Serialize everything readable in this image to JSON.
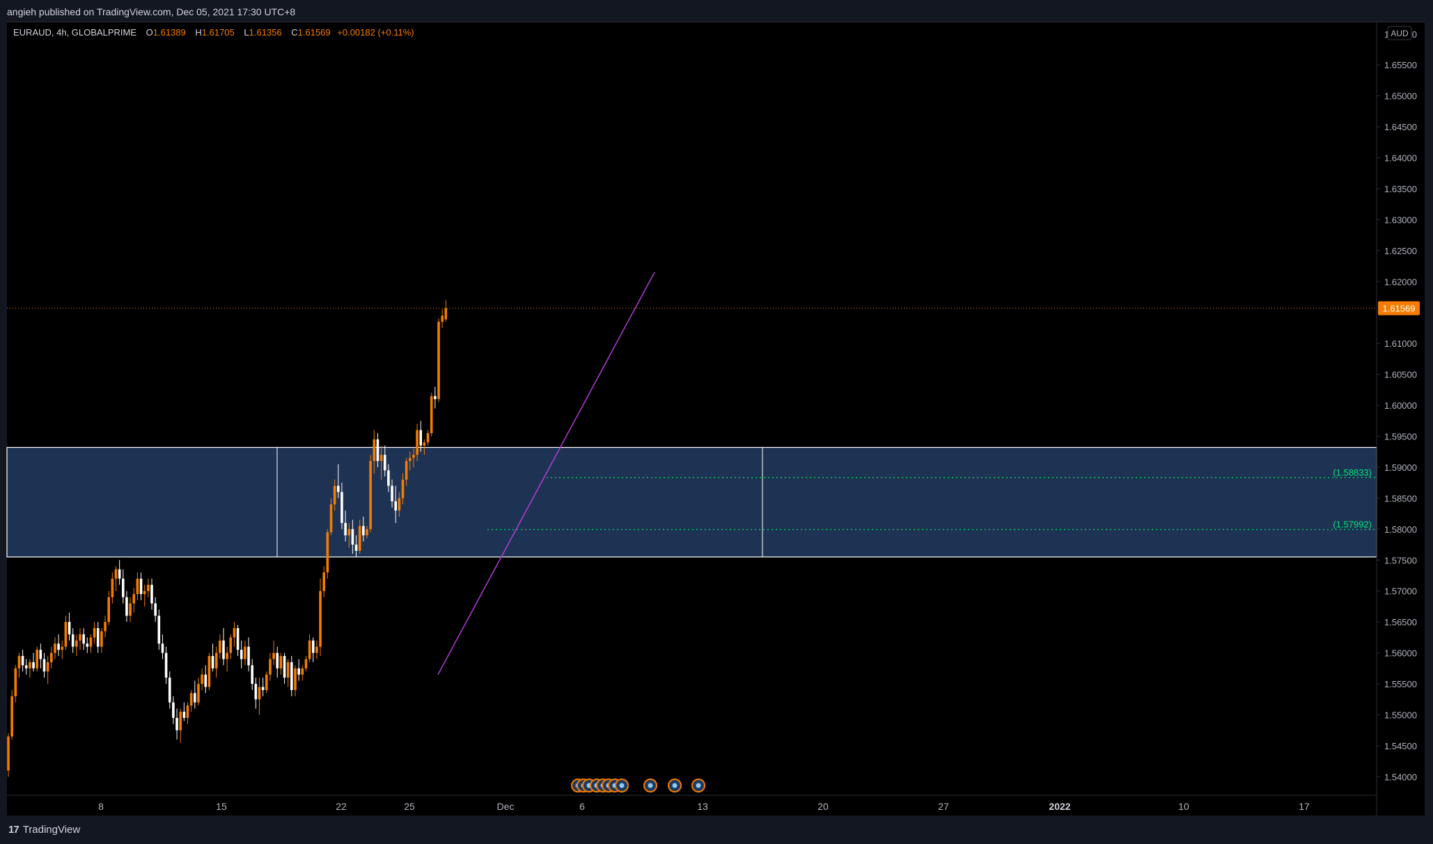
{
  "header": {
    "published_text": "angieh published on TradingView.com, Dec 05, 2021 17:30 UTC+8"
  },
  "legend": {
    "symbol": "EURAUD, 4h, GLOBALPRIME",
    "open_label": "O",
    "open_value": "1.61389",
    "high_label": "H",
    "high_value": "1.61705",
    "low_label": "L",
    "low_value": "1.61356",
    "close_label": "C",
    "close_value": "1.61569",
    "change": "+0.00182 (+0.11%)"
  },
  "price_axis": {
    "currency": "AUD",
    "top_tick": "1.66000",
    "ticks": [
      "1.65500",
      "1.65000",
      "1.64500",
      "1.64000",
      "1.63500",
      "1.63000",
      "1.62500",
      "1.62000",
      "1.61000",
      "1.60500",
      "1.60000",
      "1.59500",
      "1.59000",
      "1.58500",
      "1.58000",
      "1.57500",
      "1.57000",
      "1.56500",
      "1.56000",
      "1.55500",
      "1.55000",
      "1.54500",
      "1.54000"
    ],
    "current_price_label": "1.61569"
  },
  "time_axis": {
    "ticks": [
      "8",
      "15",
      "22",
      "25",
      "Dec",
      "6",
      "13",
      "20",
      "27",
      "2022",
      "10",
      "17"
    ]
  },
  "annotations": {
    "level_upper": "(1.58833)",
    "level_lower": "(1.57992)"
  },
  "footer": {
    "brand": "TradingView",
    "brand_mark": "17"
  },
  "colors": {
    "background": "#000000",
    "up_candle": "#f57c00",
    "down_candle": "#ffffff",
    "zone_fill": "#1e3354",
    "zone_border": "#ffffff",
    "trendline": "#b33bd6",
    "level_line": "#00c853",
    "price_line": "#f57c00",
    "text": "#b2b5be"
  },
  "chart_data": {
    "type": "candlestick",
    "symbol": "EURAUD",
    "timeframe": "4h",
    "ylim": [
      1.537,
      1.662
    ],
    "x_tick_labels": [
      "8",
      "15",
      "22",
      "25",
      "Dec",
      "6",
      "13",
      "20",
      "27",
      "2022",
      "10",
      "17"
    ],
    "last_price": 1.61569,
    "ohlc": {
      "open": 1.61389,
      "high": 1.61705,
      "low": 1.61356,
      "close": 1.61569,
      "change": 0.00182,
      "change_pct": 0.11
    },
    "horizontal_levels": [
      1.58833,
      1.57992
    ],
    "zone": {
      "top": 1.5932,
      "bottom": 1.5755
    },
    "trendline": {
      "from_price": 1.5565,
      "to_price": 1.6215
    },
    "candles": [
      [
        1.541,
        1.547,
        1.54,
        1.5465
      ],
      [
        1.5465,
        1.554,
        1.546,
        1.553
      ],
      [
        1.553,
        1.558,
        1.552,
        1.5575
      ],
      [
        1.5575,
        1.56,
        1.556,
        1.5595
      ],
      [
        1.5595,
        1.5605,
        1.557,
        1.558
      ],
      [
        1.558,
        1.559,
        1.5565,
        1.5575
      ],
      [
        1.5575,
        1.559,
        1.556,
        1.5585
      ],
      [
        1.5585,
        1.56,
        1.557,
        1.5575
      ],
      [
        1.5575,
        1.561,
        1.557,
        1.5605
      ],
      [
        1.5605,
        1.5615,
        1.5575,
        1.559
      ],
      [
        1.559,
        1.56,
        1.556,
        1.557
      ],
      [
        1.557,
        1.5595,
        1.555,
        1.5585
      ],
      [
        1.5585,
        1.561,
        1.5575,
        1.56
      ],
      [
        1.56,
        1.5625,
        1.559,
        1.5615
      ],
      [
        1.5615,
        1.563,
        1.5595,
        1.5605
      ],
      [
        1.5605,
        1.562,
        1.559,
        1.561
      ],
      [
        1.561,
        1.566,
        1.5605,
        1.565
      ],
      [
        1.565,
        1.5665,
        1.562,
        1.563
      ],
      [
        1.563,
        1.564,
        1.56,
        1.561
      ],
      [
        1.561,
        1.563,
        1.5595,
        1.562
      ],
      [
        1.562,
        1.564,
        1.5605,
        1.563
      ],
      [
        1.563,
        1.564,
        1.5605,
        1.5615
      ],
      [
        1.5615,
        1.5625,
        1.56,
        1.561
      ],
      [
        1.561,
        1.563,
        1.56,
        1.5625
      ],
      [
        1.5625,
        1.565,
        1.5615,
        1.564
      ],
      [
        1.564,
        1.565,
        1.56,
        1.561
      ],
      [
        1.561,
        1.564,
        1.56,
        1.5635
      ],
      [
        1.5635,
        1.566,
        1.5625,
        1.565
      ],
      [
        1.565,
        1.57,
        1.5645,
        1.569
      ],
      [
        1.569,
        1.573,
        1.568,
        1.572
      ],
      [
        1.572,
        1.574,
        1.57,
        1.5735
      ],
      [
        1.5735,
        1.575,
        1.571,
        1.572
      ],
      [
        1.572,
        1.5735,
        1.568,
        1.569
      ],
      [
        1.569,
        1.57,
        1.565,
        1.566
      ],
      [
        1.566,
        1.569,
        1.565,
        1.568
      ],
      [
        1.568,
        1.5705,
        1.5665,
        1.5695
      ],
      [
        1.5695,
        1.573,
        1.5685,
        1.572
      ],
      [
        1.572,
        1.573,
        1.5685,
        1.5695
      ],
      [
        1.5695,
        1.571,
        1.5675,
        1.57
      ],
      [
        1.57,
        1.572,
        1.569,
        1.571
      ],
      [
        1.571,
        1.572,
        1.567,
        1.568
      ],
      [
        1.568,
        1.569,
        1.565,
        1.566
      ],
      [
        1.566,
        1.567,
        1.5605,
        1.5615
      ],
      [
        1.5615,
        1.563,
        1.559,
        1.56
      ],
      [
        1.56,
        1.561,
        1.555,
        1.556
      ],
      [
        1.556,
        1.557,
        1.551,
        1.552
      ],
      [
        1.552,
        1.553,
        1.5485,
        1.5495
      ],
      [
        1.5495,
        1.551,
        1.546,
        1.5475
      ],
      [
        1.5475,
        1.551,
        1.5455,
        1.5505
      ],
      [
        1.5505,
        1.552,
        1.549,
        1.5495
      ],
      [
        1.5495,
        1.552,
        1.5485,
        1.5515
      ],
      [
        1.5515,
        1.554,
        1.5505,
        1.5535
      ],
      [
        1.5535,
        1.5555,
        1.551,
        1.552
      ],
      [
        1.552,
        1.556,
        1.5515,
        1.555
      ],
      [
        1.555,
        1.5575,
        1.554,
        1.5565
      ],
      [
        1.5565,
        1.558,
        1.5535,
        1.5545
      ],
      [
        1.5545,
        1.56,
        1.554,
        1.5595
      ],
      [
        1.5595,
        1.5615,
        1.557,
        1.5575
      ],
      [
        1.5575,
        1.561,
        1.556,
        1.56
      ],
      [
        1.56,
        1.563,
        1.559,
        1.562
      ],
      [
        1.562,
        1.564,
        1.558,
        1.559
      ],
      [
        1.559,
        1.561,
        1.557,
        1.56
      ],
      [
        1.56,
        1.563,
        1.559,
        1.5625
      ],
      [
        1.5625,
        1.565,
        1.561,
        1.564
      ],
      [
        1.564,
        1.5645,
        1.5595,
        1.5605
      ],
      [
        1.5605,
        1.562,
        1.5575,
        1.559
      ],
      [
        1.559,
        1.562,
        1.558,
        1.561
      ],
      [
        1.561,
        1.5625,
        1.557,
        1.558
      ],
      [
        1.558,
        1.559,
        1.554,
        1.555
      ],
      [
        1.555,
        1.556,
        1.551,
        1.5525
      ],
      [
        1.5525,
        1.556,
        1.55,
        1.5545
      ],
      [
        1.5545,
        1.556,
        1.553,
        1.554
      ],
      [
        1.554,
        1.557,
        1.5535,
        1.5565
      ],
      [
        1.5565,
        1.56,
        1.5555,
        1.559
      ],
      [
        1.559,
        1.562,
        1.558,
        1.56
      ],
      [
        1.56,
        1.561,
        1.556,
        1.5575
      ],
      [
        1.5575,
        1.56,
        1.5565,
        1.5595
      ],
      [
        1.5595,
        1.56,
        1.555,
        1.556
      ],
      [
        1.556,
        1.559,
        1.5545,
        1.5585
      ],
      [
        1.5585,
        1.5595,
        1.553,
        1.554
      ],
      [
        1.554,
        1.558,
        1.553,
        1.5575
      ],
      [
        1.5575,
        1.559,
        1.5555,
        1.5565
      ],
      [
        1.5565,
        1.558,
        1.5555,
        1.5575
      ],
      [
        1.5575,
        1.5595,
        1.557,
        1.559
      ],
      [
        1.559,
        1.563,
        1.5585,
        1.562
      ],
      [
        1.562,
        1.5625,
        1.5585,
        1.56
      ],
      [
        1.56,
        1.562,
        1.559,
        1.561
      ],
      [
        1.561,
        1.572,
        1.5595,
        1.57
      ],
      [
        1.57,
        1.574,
        1.569,
        1.573
      ],
      [
        1.573,
        1.58,
        1.572,
        1.5795
      ],
      [
        1.5795,
        1.585,
        1.579,
        1.584
      ],
      [
        1.584,
        1.588,
        1.583,
        1.587
      ],
      [
        1.587,
        1.5905,
        1.585,
        1.586
      ],
      [
        1.586,
        1.5875,
        1.58,
        1.581
      ],
      [
        1.581,
        1.583,
        1.578,
        1.579
      ],
      [
        1.579,
        1.581,
        1.577,
        1.58
      ],
      [
        1.58,
        1.5815,
        1.576,
        1.5775
      ],
      [
        1.5775,
        1.579,
        1.5755,
        1.5765
      ],
      [
        1.5765,
        1.5815,
        1.576,
        1.5805
      ],
      [
        1.5805,
        1.582,
        1.578,
        1.579
      ],
      [
        1.579,
        1.5805,
        1.5785,
        1.58
      ],
      [
        1.58,
        1.592,
        1.5795,
        1.591
      ],
      [
        1.591,
        1.596,
        1.589,
        1.5945
      ],
      [
        1.5945,
        1.5955,
        1.59,
        1.591
      ],
      [
        1.591,
        1.5935,
        1.588,
        1.592
      ],
      [
        1.592,
        1.5935,
        1.5885,
        1.5895
      ],
      [
        1.5895,
        1.5905,
        1.586,
        1.587
      ],
      [
        1.587,
        1.588,
        1.5835,
        1.5845
      ],
      [
        1.5845,
        1.587,
        1.581,
        1.583
      ],
      [
        1.583,
        1.586,
        1.582,
        1.585
      ],
      [
        1.585,
        1.589,
        1.584,
        1.588
      ],
      [
        1.588,
        1.5915,
        1.587,
        1.591
      ],
      [
        1.591,
        1.5925,
        1.5895,
        1.5915
      ],
      [
        1.5915,
        1.593,
        1.59,
        1.592
      ],
      [
        1.592,
        1.597,
        1.591,
        1.596
      ],
      [
        1.596,
        1.5975,
        1.5925,
        1.5935
      ],
      [
        1.5935,
        1.5945,
        1.592,
        1.594
      ],
      [
        1.594,
        1.596,
        1.5935,
        1.5955
      ],
      [
        1.5955,
        1.602,
        1.595,
        1.6015
      ],
      [
        1.6015,
        1.603,
        1.5995,
        1.601
      ],
      [
        1.601,
        1.614,
        1.6005,
        1.6135
      ],
      [
        1.6135,
        1.6155,
        1.6125,
        1.6145
      ],
      [
        1.61389,
        1.61705,
        1.61356,
        1.61569
      ]
    ]
  }
}
